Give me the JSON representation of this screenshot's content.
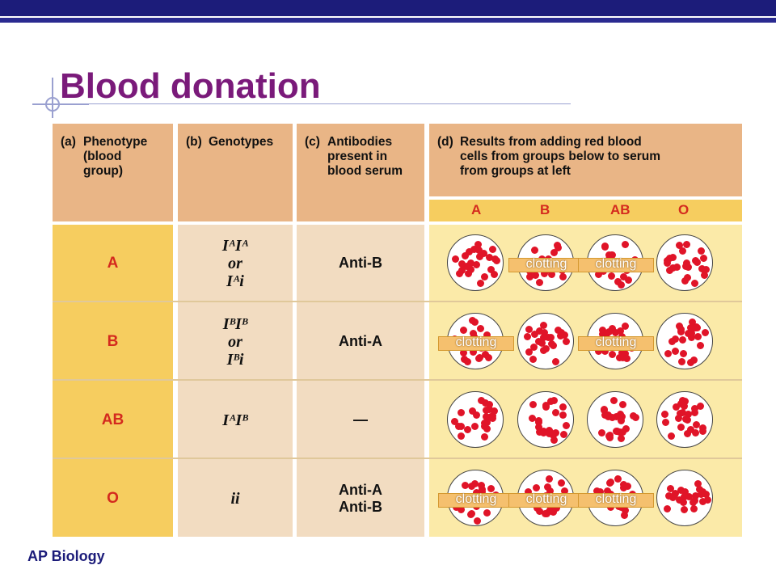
{
  "slide": {
    "title": "Blood donation",
    "footer": "AP Biology"
  },
  "table": {
    "headers": {
      "a_label": "(a)",
      "a_text": "Phenotype\n(blood\ngroup)",
      "b_label": "(b)",
      "b_text": "Genotypes",
      "c_label": "(c)",
      "c_text": "Antibodies\npresent in\nblood serum",
      "d_label": "(d)",
      "d_text": "Results from adding red blood\ncells from groups below to serum\nfrom groups at left"
    },
    "donor_groups": [
      "A",
      "B",
      "AB",
      "O"
    ],
    "rows": [
      {
        "phenotype": "A",
        "genotypes": [
          "IᴬIᴬ",
          "or",
          "Iᴬi"
        ],
        "antibodies": [
          "Anti-B"
        ],
        "results": [
          false,
          true,
          true,
          false
        ]
      },
      {
        "phenotype": "B",
        "genotypes": [
          "IᴮIᴮ",
          "or",
          "Iᴮi"
        ],
        "antibodies": [
          "Anti-A"
        ],
        "results": [
          true,
          false,
          true,
          false
        ]
      },
      {
        "phenotype": "AB",
        "genotypes": [
          "IᴬIᴮ"
        ],
        "antibodies": [
          "—"
        ],
        "results": [
          false,
          false,
          false,
          false
        ]
      },
      {
        "phenotype": "O",
        "genotypes": [
          "ii"
        ],
        "antibodies": [
          "Anti-A",
          "Anti-B"
        ],
        "results": [
          true,
          true,
          true,
          false
        ]
      }
    ],
    "clotting_label": "clotting"
  },
  "colors": {
    "header_bg": "#e9b586",
    "phenotype_bg": "#f6cd5f",
    "phenotype_text": "#d42a1e",
    "results_bg": "#fbeaa8",
    "cell_dot": "#e01428",
    "title": "#7a1a7a"
  }
}
